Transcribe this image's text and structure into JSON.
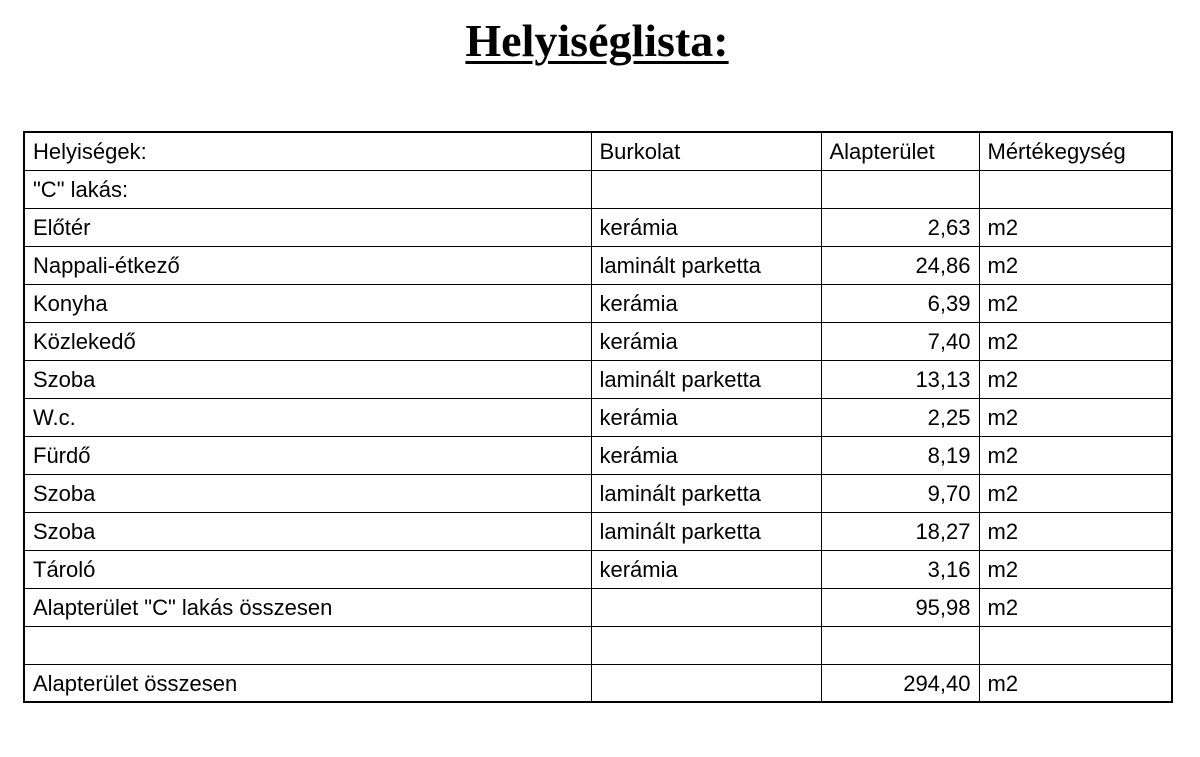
{
  "header": {
    "title": "Helyiséglista:"
  },
  "table": {
    "columns": [
      "Helyiségek:",
      "Burkolat",
      "Alapterület",
      "Mértékegység"
    ],
    "rows": [
      [
        "\"C\" lakás:",
        null,
        null,
        null
      ],
      [
        "Előtér",
        "kerámia",
        "2,63",
        "m2"
      ],
      [
        "Nappali-étkező",
        "laminált parketta",
        "24,86",
        "m2"
      ],
      [
        "Konyha",
        "kerámia",
        "6,39",
        "m2"
      ],
      [
        "Közlekedő",
        "kerámia",
        "7,40",
        "m2"
      ],
      [
        "Szoba",
        "laminált parketta",
        "13,13",
        "m2"
      ],
      [
        "W.c.",
        "kerámia",
        "2,25",
        "m2"
      ],
      [
        "Fürdő",
        "kerámia",
        "8,19",
        "m2"
      ],
      [
        "Szoba",
        "laminált parketta",
        "9,70",
        "m2"
      ],
      [
        "Szoba",
        "laminált parketta",
        "18,27",
        "m2"
      ],
      [
        "Tároló",
        "kerámia",
        "3,16",
        "m2"
      ],
      [
        "Alapterület \"C\" lakás összesen",
        null,
        "95,98",
        "m2"
      ],
      [
        null,
        null,
        null,
        null
      ],
      [
        "Alapterület összesen",
        null,
        "294,40",
        "m2"
      ]
    ]
  }
}
